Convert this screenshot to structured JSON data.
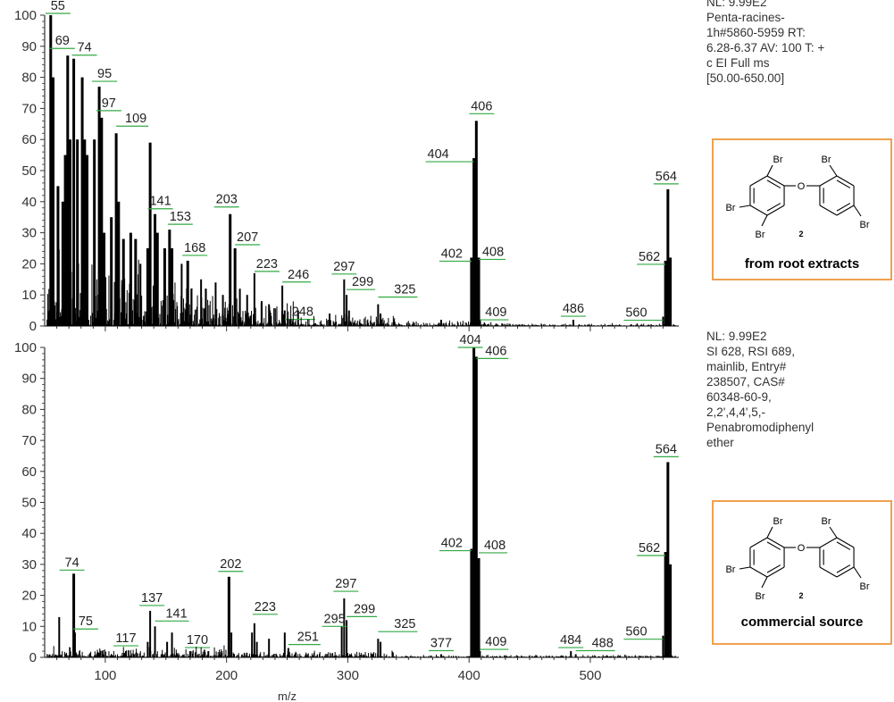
{
  "chart_data": [
    {
      "type": "bar",
      "xlabel": "",
      "ylim": [
        0,
        100
      ],
      "yticks": [
        0,
        10,
        20,
        30,
        40,
        50,
        60,
        70,
        80,
        90,
        100
      ],
      "xlim": [
        50,
        570
      ],
      "peaks": [
        {
          "x": 55,
          "y": 100
        },
        {
          "x": 57,
          "y": 80
        },
        {
          "x": 61,
          "y": 45
        },
        {
          "x": 65,
          "y": 40
        },
        {
          "x": 67,
          "y": 55
        },
        {
          "x": 69,
          "y": 87
        },
        {
          "x": 71,
          "y": 60
        },
        {
          "x": 74,
          "y": 86
        },
        {
          "x": 77,
          "y": 60
        },
        {
          "x": 81,
          "y": 80
        },
        {
          "x": 83,
          "y": 60
        },
        {
          "x": 85,
          "y": 55
        },
        {
          "x": 91,
          "y": 60
        },
        {
          "x": 95,
          "y": 77
        },
        {
          "x": 97,
          "y": 67
        },
        {
          "x": 99,
          "y": 30
        },
        {
          "x": 105,
          "y": 35
        },
        {
          "x": 109,
          "y": 62
        },
        {
          "x": 111,
          "y": 40
        },
        {
          "x": 115,
          "y": 28
        },
        {
          "x": 121,
          "y": 30
        },
        {
          "x": 125,
          "y": 28
        },
        {
          "x": 129,
          "y": 20
        },
        {
          "x": 135,
          "y": 25
        },
        {
          "x": 137,
          "y": 59
        },
        {
          "x": 141,
          "y": 36
        },
        {
          "x": 143,
          "y": 30
        },
        {
          "x": 149,
          "y": 25
        },
        {
          "x": 153,
          "y": 31
        },
        {
          "x": 155,
          "y": 25
        },
        {
          "x": 163,
          "y": 20
        },
        {
          "x": 168,
          "y": 21
        },
        {
          "x": 171,
          "y": 12
        },
        {
          "x": 179,
          "y": 15
        },
        {
          "x": 183,
          "y": 12
        },
        {
          "x": 191,
          "y": 14
        },
        {
          "x": 197,
          "y": 10
        },
        {
          "x": 203,
          "y": 36
        },
        {
          "x": 207,
          "y": 25
        },
        {
          "x": 211,
          "y": 12
        },
        {
          "x": 217,
          "y": 10
        },
        {
          "x": 223,
          "y": 17
        },
        {
          "x": 229,
          "y": 8
        },
        {
          "x": 235,
          "y": 7
        },
        {
          "x": 246,
          "y": 13
        },
        {
          "x": 248,
          "y": 5
        },
        {
          "x": 259,
          "y": 5
        },
        {
          "x": 285,
          "y": 4
        },
        {
          "x": 297,
          "y": 15
        },
        {
          "x": 299,
          "y": 10
        },
        {
          "x": 301,
          "y": 5
        },
        {
          "x": 325,
          "y": 7
        },
        {
          "x": 327,
          "y": 4
        },
        {
          "x": 377,
          "y": 2
        },
        {
          "x": 402,
          "y": 22
        },
        {
          "x": 404,
          "y": 54
        },
        {
          "x": 406,
          "y": 66
        },
        {
          "x": 408,
          "y": 22
        },
        {
          "x": 409,
          "y": 2
        },
        {
          "x": 486,
          "y": 2
        },
        {
          "x": 560,
          "y": 3
        },
        {
          "x": 562,
          "y": 21
        },
        {
          "x": 564,
          "y": 44
        },
        {
          "x": 566,
          "y": 22
        }
      ],
      "labels": [
        {
          "mz": "55",
          "x": 55,
          "y": 100
        },
        {
          "mz": "69",
          "x": 69,
          "y": 87
        },
        {
          "mz": "74",
          "x": 74,
          "y": 86
        },
        {
          "mz": "95",
          "x": 95,
          "y": 77
        },
        {
          "mz": "97",
          "x": 97,
          "y": 67
        },
        {
          "mz": "109",
          "x": 109,
          "y": 62
        },
        {
          "mz": "141",
          "x": 141,
          "y": 36
        },
        {
          "mz": "153",
          "x": 153,
          "y": 31
        },
        {
          "mz": "168",
          "x": 168,
          "y": 21
        },
        {
          "mz": "203",
          "x": 203,
          "y": 36
        },
        {
          "mz": "207",
          "x": 207,
          "y": 25
        },
        {
          "mz": "223",
          "x": 223,
          "y": 17
        },
        {
          "mz": "246",
          "x": 246,
          "y": 13
        },
        {
          "mz": "248",
          "x": 248,
          "y": 5
        },
        {
          "mz": "297",
          "x": 297,
          "y": 15
        },
        {
          "mz": "299",
          "x": 299,
          "y": 10
        },
        {
          "mz": "325",
          "x": 325,
          "y": 7
        },
        {
          "mz": "402",
          "x": 402,
          "y": 22
        },
        {
          "mz": "404",
          "x": 404,
          "y": 54
        },
        {
          "mz": "406",
          "x": 406,
          "y": 66
        },
        {
          "mz": "408",
          "x": 408,
          "y": 22
        },
        {
          "mz": "409",
          "x": 409,
          "y": 2
        },
        {
          "mz": "486",
          "x": 486,
          "y": 2
        },
        {
          "mz": "560",
          "x": 560,
          "y": 3
        },
        {
          "mz": "562",
          "x": 562,
          "y": 21
        },
        {
          "mz": "564",
          "x": 564,
          "y": 44
        }
      ],
      "info": [
        "NL: 9.99E2",
        "Penta-racines-",
        "1h#5860-5959  RT:",
        "6.28-6.37  AV: 100 T: +",
        "c EI Full ms",
        "[50.00-650.00]"
      ],
      "structure_caption": "from root extracts"
    },
    {
      "type": "bar",
      "xlabel": "m/z",
      "ylim": [
        0,
        100
      ],
      "yticks": [
        0,
        10,
        20,
        30,
        40,
        50,
        60,
        70,
        80,
        90,
        100
      ],
      "xticks": [
        100,
        200,
        300,
        400,
        500
      ],
      "xlim": [
        50,
        570
      ],
      "peaks": [
        {
          "x": 62,
          "y": 13
        },
        {
          "x": 74,
          "y": 27
        },
        {
          "x": 75,
          "y": 8
        },
        {
          "x": 117,
          "y": 2
        },
        {
          "x": 135,
          "y": 5
        },
        {
          "x": 137,
          "y": 15
        },
        {
          "x": 141,
          "y": 10
        },
        {
          "x": 151,
          "y": 5
        },
        {
          "x": 155,
          "y": 8
        },
        {
          "x": 170,
          "y": 2
        },
        {
          "x": 185,
          "y": 2
        },
        {
          "x": 202,
          "y": 26
        },
        {
          "x": 204,
          "y": 8
        },
        {
          "x": 221,
          "y": 8
        },
        {
          "x": 223,
          "y": 11
        },
        {
          "x": 225,
          "y": 5
        },
        {
          "x": 235,
          "y": 6
        },
        {
          "x": 248,
          "y": 8
        },
        {
          "x": 251,
          "y": 3
        },
        {
          "x": 295,
          "y": 10
        },
        {
          "x": 297,
          "y": 19
        },
        {
          "x": 299,
          "y": 12
        },
        {
          "x": 325,
          "y": 6
        },
        {
          "x": 327,
          "y": 5
        },
        {
          "x": 377,
          "y": 1
        },
        {
          "x": 402,
          "y": 35
        },
        {
          "x": 404,
          "y": 100
        },
        {
          "x": 406,
          "y": 97
        },
        {
          "x": 408,
          "y": 32
        },
        {
          "x": 409,
          "y": 2
        },
        {
          "x": 484,
          "y": 2
        },
        {
          "x": 488,
          "y": 1
        },
        {
          "x": 560,
          "y": 7
        },
        {
          "x": 562,
          "y": 34
        },
        {
          "x": 564,
          "y": 63
        },
        {
          "x": 566,
          "y": 30
        }
      ],
      "labels": [
        {
          "mz": "74",
          "x": 74,
          "y": 27
        },
        {
          "mz": "75",
          "x": 75,
          "y": 8
        },
        {
          "mz": "117",
          "x": 117,
          "y": 2
        },
        {
          "mz": "137",
          "x": 137,
          "y": 15
        },
        {
          "mz": "141",
          "x": 141,
          "y": 10
        },
        {
          "mz": "170",
          "x": 170,
          "y": 2
        },
        {
          "mz": "202",
          "x": 202,
          "y": 26
        },
        {
          "mz": "223",
          "x": 223,
          "y": 11
        },
        {
          "mz": "251",
          "x": 251,
          "y": 3
        },
        {
          "mz": "295",
          "x": 295,
          "y": 10
        },
        {
          "mz": "297",
          "x": 297,
          "y": 19
        },
        {
          "mz": "299",
          "x": 299,
          "y": 12
        },
        {
          "mz": "325",
          "x": 325,
          "y": 6
        },
        {
          "mz": "377",
          "x": 377,
          "y": 1
        },
        {
          "mz": "402",
          "x": 402,
          "y": 35
        },
        {
          "mz": "404",
          "x": 404,
          "y": 100
        },
        {
          "mz": "406",
          "x": 406,
          "y": 97
        },
        {
          "mz": "408",
          "x": 408,
          "y": 32
        },
        {
          "mz": "409",
          "x": 409,
          "y": 2
        },
        {
          "mz": "484",
          "x": 484,
          "y": 2
        },
        {
          "mz": "488",
          "x": 488,
          "y": 1
        },
        {
          "mz": "560",
          "x": 560,
          "y": 7
        },
        {
          "mz": "562",
          "x": 562,
          "y": 34
        },
        {
          "mz": "564",
          "x": 564,
          "y": 63
        }
      ],
      "info": [
        "NL: 9.99E2",
        "SI 628, RSI 689,",
        "mainlib, Entry#",
        "238507, CAS#",
        "60348-60-9,",
        "2,2',4,4',5,-",
        "Penabromodiphenyl",
        "ether"
      ],
      "structure_caption": "commercial source"
    }
  ],
  "structure": {
    "atom_label": "Br",
    "oxygen_label": "O",
    "compound_number": "2"
  },
  "colors": {
    "peak": "#000000",
    "leader": "#33aa44",
    "frame": "#f0a050",
    "axis": "#333333"
  }
}
